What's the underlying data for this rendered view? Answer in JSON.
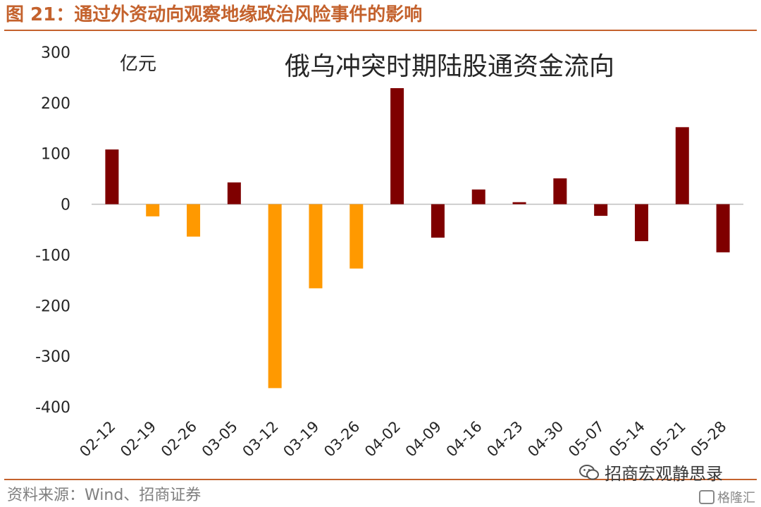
{
  "header": {
    "title": "图 21：通过外资动向观察地缘政治风险事件的影响"
  },
  "footer": {
    "source": "资料来源：Wind、招商证券"
  },
  "watermark": {
    "text": "招商宏观静思录",
    "icon": "wechat-icon",
    "text2": "格隆汇",
    "icon2": "gelonghui-logo-icon"
  },
  "colors": {
    "accent": "#c4622d",
    "positive": "#7f0000",
    "negative": "#ff9900"
  },
  "chart_data": {
    "type": "bar",
    "title": "俄乌冲突时期陆股通资金流向",
    "ylabel": "亿元",
    "xlabel": "",
    "ylim": [
      -400,
      300
    ],
    "yticks": [
      300,
      200,
      100,
      0,
      -100,
      -200,
      -300,
      -400
    ],
    "grid": false,
    "categories": [
      "02-12",
      "02-19",
      "02-26",
      "03-05",
      "03-12",
      "03-19",
      "03-26",
      "04-02",
      "04-09",
      "04-16",
      "04-23",
      "04-30",
      "05-07",
      "05-14",
      "05-21",
      "05-28"
    ],
    "values": [
      108,
      -24,
      -64,
      43,
      -363,
      -166,
      -127,
      229,
      -66,
      29,
      4,
      51,
      -23,
      -73,
      152,
      -95
    ],
    "bar_colors": [
      "#7f0000",
      "#ff9900",
      "#ff9900",
      "#7f0000",
      "#ff9900",
      "#ff9900",
      "#ff9900",
      "#7f0000",
      "#7f0000",
      "#7f0000",
      "#7f0000",
      "#7f0000",
      "#7f0000",
      "#7f0000",
      "#7f0000",
      "#7f0000"
    ]
  }
}
